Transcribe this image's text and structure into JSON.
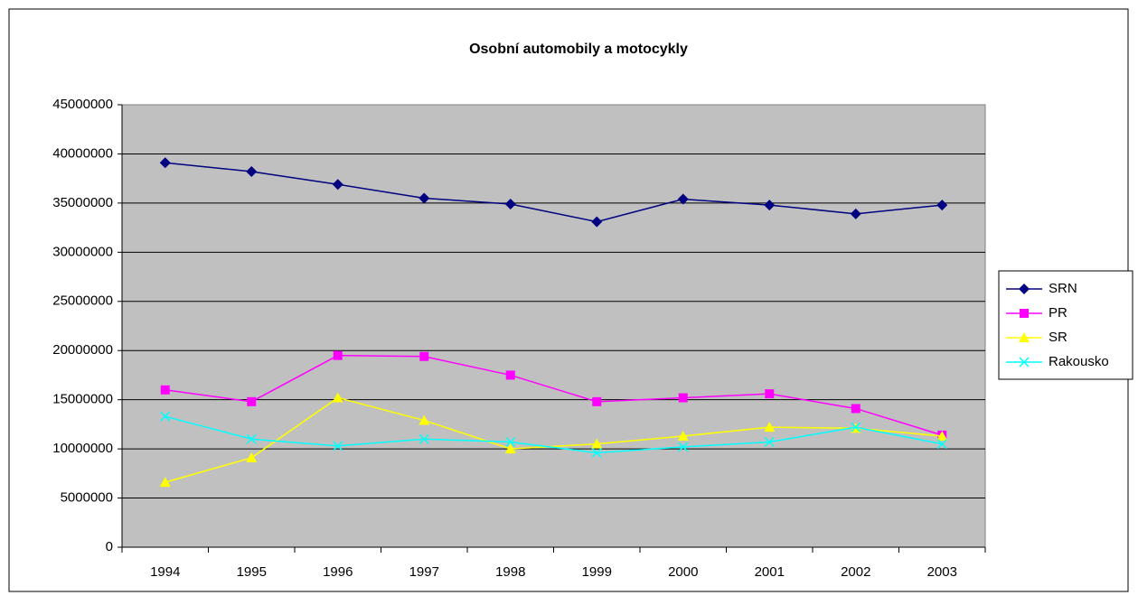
{
  "chart_data": {
    "type": "line",
    "title": "Osobní automobily a motocykly",
    "categories": [
      "1994",
      "1995",
      "1996",
      "1997",
      "1998",
      "1999",
      "2000",
      "2001",
      "2002",
      "2003"
    ],
    "series": [
      {
        "name": "SRN",
        "color": "#000080",
        "marker": "diamond",
        "values": [
          39100000,
          38200000,
          36900000,
          35500000,
          34900000,
          33100000,
          35400000,
          34800000,
          33900000,
          34800000
        ]
      },
      {
        "name": "PR",
        "color": "#ff00ff",
        "marker": "square",
        "values": [
          16000000,
          14800000,
          19500000,
          19400000,
          17500000,
          14800000,
          15200000,
          15600000,
          14100000,
          11400000
        ]
      },
      {
        "name": "SR",
        "color": "#ffff00",
        "marker": "triangle",
        "values": [
          6600000,
          9100000,
          15200000,
          12900000,
          10000000,
          10500000,
          11300000,
          12200000,
          12100000,
          11300000
        ]
      },
      {
        "name": "Rakousko",
        "color": "#00ffff",
        "marker": "x",
        "values": [
          13300000,
          11000000,
          10300000,
          11000000,
          10700000,
          9600000,
          10200000,
          10700000,
          12200000,
          10500000
        ]
      }
    ],
    "ylim": [
      0,
      45000000
    ],
    "yticks": [
      0,
      5000000,
      10000000,
      15000000,
      20000000,
      25000000,
      30000000,
      35000000,
      40000000,
      45000000
    ],
    "grid": true,
    "legend": "right"
  }
}
